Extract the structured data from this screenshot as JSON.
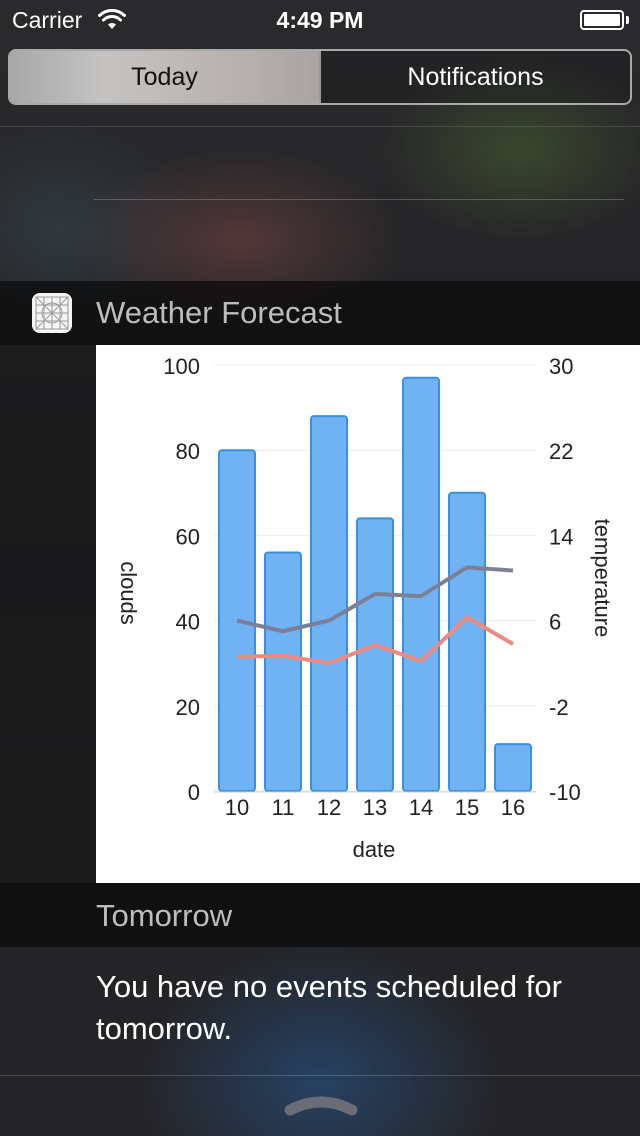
{
  "status_bar": {
    "carrier": "Carrier",
    "time": "4:49 PM",
    "icons": [
      "wifi-icon",
      "battery-icon"
    ]
  },
  "segmented_control": {
    "tabs": [
      {
        "label": "Today",
        "selected": true
      },
      {
        "label": "Notifications",
        "selected": false
      }
    ]
  },
  "widget": {
    "title": "Weather Forecast",
    "icon": "weather-app-icon"
  },
  "chart_data": {
    "type": "bar",
    "xlabel": "date",
    "categories": [
      "10",
      "11",
      "12",
      "13",
      "14",
      "15",
      "16"
    ],
    "y_left": {
      "label": "clouds",
      "ticks": [
        "100",
        "80",
        "60",
        "40",
        "20",
        "0"
      ],
      "ylim": [
        0,
        100
      ]
    },
    "y_right": {
      "label": "temperature",
      "ticks": [
        "30",
        "22",
        "14",
        "6",
        "-2",
        "-10"
      ],
      "ylim": [
        -10,
        30
      ]
    },
    "series": [
      {
        "kind": "bar",
        "axis": "left",
        "color": "#6fb3f5",
        "values": [
          80,
          56,
          88,
          64,
          97,
          70,
          11
        ]
      },
      {
        "kind": "line",
        "axis": "right",
        "color": "#7d7f96",
        "values": [
          6,
          5,
          6,
          8.5,
          8.3,
          11,
          10.7
        ]
      },
      {
        "kind": "line",
        "axis": "right",
        "color": "#f08a80",
        "values": [
          2.6,
          2.7,
          2,
          3.7,
          2.2,
          6.3,
          3.8
        ]
      }
    ],
    "grid": true,
    "legend": "none"
  },
  "tomorrow": {
    "title": "Tomorrow",
    "message": "You have no events scheduled for tomorrow."
  },
  "colors": {
    "bar_fill": "#6fb3f5",
    "bar_stroke": "#3a8fe0",
    "line_dark": "#7d7f96",
    "line_red": "#f08a80"
  }
}
